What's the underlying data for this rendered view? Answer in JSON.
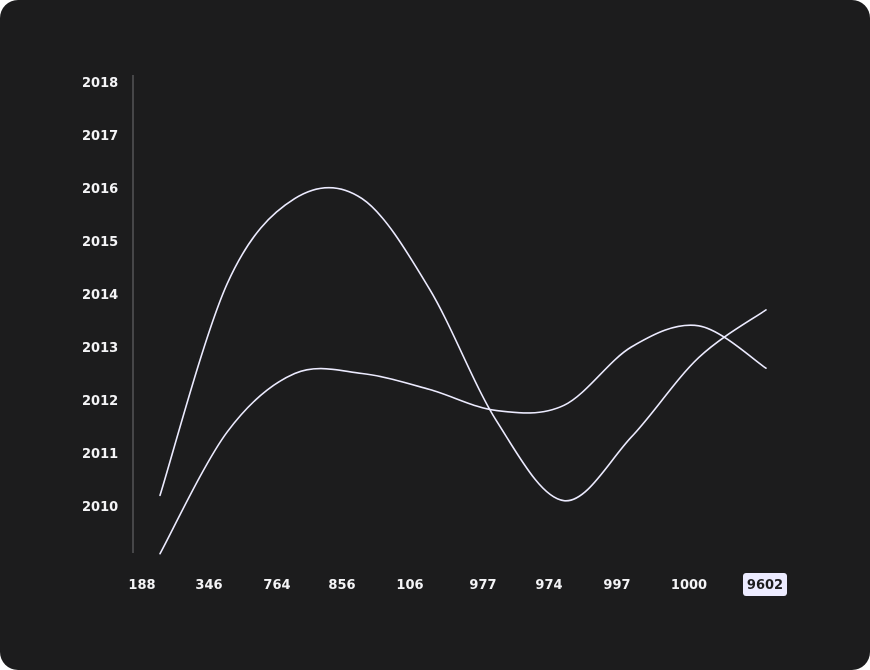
{
  "chart_data": {
    "type": "line",
    "title": "",
    "xlabel": "",
    "ylabel": "",
    "categories": [
      "188",
      "346",
      "764",
      "856",
      "106",
      "977",
      "974",
      "997",
      "1000",
      "9602"
    ],
    "highlighted_category": "9602",
    "y_ticks": [
      "2010",
      "2011",
      "2012",
      "2013",
      "2014",
      "2015",
      "2016",
      "2017",
      "2018"
    ],
    "ylim": [
      2009.1,
      2018
    ],
    "series": [
      {
        "values": [
          2010.2,
          2014.2,
          2015.8,
          2015.8,
          2014.1,
          2011.6,
          2010.1,
          2011.3,
          2012.8,
          2013.7
        ]
      },
      {
        "values": [
          2009.1,
          2011.4,
          2012.5,
          2012.5,
          2012.2,
          2011.8,
          2011.9,
          2013.0,
          2013.4,
          2012.6
        ]
      }
    ],
    "colors": {
      "background": "#1c1c1d",
      "line": "#ecebff",
      "axis": "#6f6f73",
      "text": "#f4f4f6",
      "highlight_bg": "#ecebff"
    },
    "grid": false,
    "legend": "none"
  }
}
